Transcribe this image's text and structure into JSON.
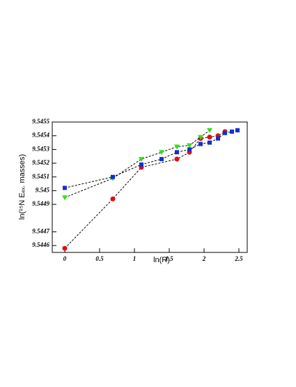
{
  "chart_data": {
    "type": "scatter",
    "x_label": "ln(R)",
    "y_label": "ln(¹⁵N  Eₑₓ.  masses)",
    "xlim": [
      -0.18,
      2.62
    ],
    "xticks": [
      0,
      0.5,
      1,
      1.5,
      2,
      2.5
    ],
    "ylim": [
      9.54455,
      9.5455
    ],
    "yticks": [
      9.5446,
      9.5447,
      9.5449,
      9.545,
      9.5451,
      9.5452,
      9.5453,
      9.5454,
      9.5455
    ],
    "series": [
      {
        "color": "#e01010",
        "marker": "circle",
        "x": [
          0,
          0.69,
          1.1,
          1.61,
          1.79,
          1.95,
          2.08,
          2.2,
          2.3
        ],
        "values": [
          9.54458,
          9.54494,
          9.54517,
          9.54523,
          9.54528,
          9.54538,
          9.54539,
          9.5454,
          9.54543
        ]
      },
      {
        "color": "#30e010",
        "marker": "triangle",
        "x": [
          0,
          0.69,
          1.1,
          1.39,
          1.61,
          1.79,
          1.95,
          2.08
        ],
        "values": [
          9.54495,
          9.54509,
          9.54523,
          9.54528,
          9.54532,
          9.54533,
          9.54539,
          9.54544
        ]
      },
      {
        "color": "#1030d0",
        "marker": "square",
        "x": [
          0,
          0.69,
          1.1,
          1.39,
          1.61,
          1.79,
          1.95,
          2.08,
          2.2,
          2.3,
          2.4,
          2.48
        ],
        "values": [
          9.54502,
          9.5451,
          9.54519,
          9.54523,
          9.54528,
          9.5453,
          9.54534,
          9.54535,
          9.54538,
          9.54542,
          9.54543,
          9.54544
        ]
      }
    ]
  }
}
